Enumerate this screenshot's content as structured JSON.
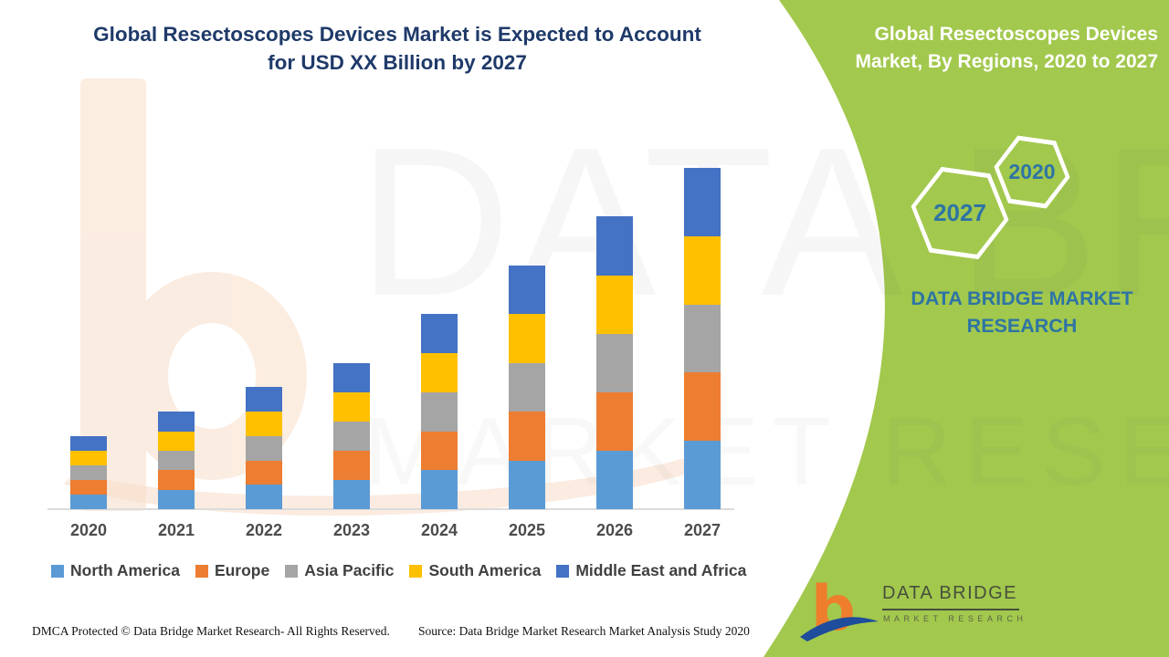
{
  "header": {
    "title_line1": "Global Resectoscopes Devices Market is Expected to Account",
    "title_line2": "for USD XX Billion by 2027"
  },
  "right_panel": {
    "bg_color": "#a2c84d",
    "title_line1": "Global Resectoscopes Devices",
    "title_line2": "Market, By Regions, 2020 to 2027",
    "hexagons": [
      {
        "label": "2027"
      },
      {
        "label": "2020"
      }
    ],
    "brand_line1": "DATA BRIDGE MARKET",
    "brand_line2": "RESEARCH"
  },
  "palette": {
    "green": "#a2c84d",
    "navy_title": "#1f3a69",
    "teal": "#2e74a4",
    "axis_label": "#4c4c4c",
    "legend_text": "#404040",
    "axis_line": "#dcdcdc",
    "logo_orange": "#ee7d2c",
    "logo_blue": "#1e4d9b"
  },
  "watermark": {
    "line1": "DATA BRIDGE",
    "line2": "MARKET RESEARCH"
  },
  "logo": {
    "name": "DATA BRIDGE",
    "sub": "MARKET RESEARCH"
  },
  "footer": {
    "dmca": "DMCA Protected © Data Bridge Market Research- All Rights Reserved.",
    "source": "Source: Data Bridge Market Research Market Analysis Study 2020"
  },
  "chart_data": {
    "type": "bar",
    "stacked": true,
    "title": "Global Resectoscopes Devices Market, By Regions, 2020 to 2027",
    "xlabel": "",
    "ylabel": "",
    "value_axis_visible": false,
    "grid": false,
    "legend_position": "bottom",
    "values_unit": "USD Billion (actual values masked as 'XX'; series values estimated from bar heights in relative units)",
    "categories": [
      "2020",
      "2021",
      "2022",
      "2023",
      "2024",
      "2025",
      "2026",
      "2027"
    ],
    "totals": [
      3.0,
      4.0,
      5.0,
      6.0,
      8.0,
      10.0,
      12.0,
      14.0
    ],
    "series": [
      {
        "name": "North America",
        "color": "#5b9bd5",
        "values": [
          0.6,
          0.8,
          1.0,
          1.2,
          1.6,
          2.0,
          2.4,
          2.8
        ]
      },
      {
        "name": "Europe",
        "color": "#ed7d31",
        "values": [
          0.6,
          0.8,
          1.0,
          1.2,
          1.6,
          2.0,
          2.4,
          2.8
        ]
      },
      {
        "name": "Asia Pacific",
        "color": "#a5a5a5",
        "values": [
          0.6,
          0.8,
          1.0,
          1.2,
          1.6,
          2.0,
          2.4,
          2.8
        ]
      },
      {
        "name": "South America",
        "color": "#ffc000",
        "values": [
          0.6,
          0.8,
          1.0,
          1.2,
          1.6,
          2.0,
          2.4,
          2.8
        ]
      },
      {
        "name": "Middle East and Africa",
        "color": "#4472c4",
        "values": [
          0.6,
          0.8,
          1.0,
          1.2,
          1.6,
          2.0,
          2.4,
          2.8
        ]
      }
    ]
  }
}
